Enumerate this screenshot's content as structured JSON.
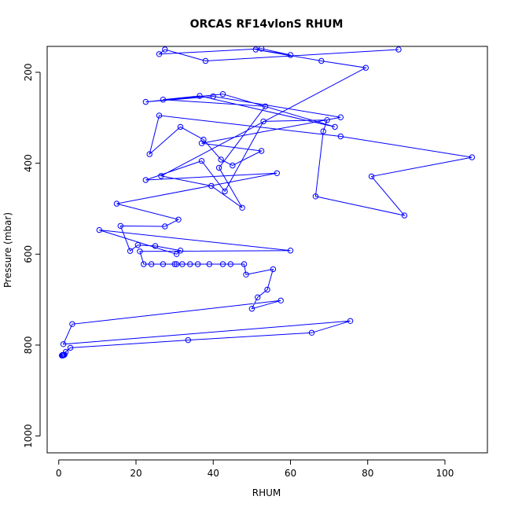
{
  "chart_data": {
    "type": "line",
    "title": "ORCAS RF14vlonS RHUM",
    "xlabel": "RHUM",
    "ylabel": "Pressure (mbar)",
    "xlim": [
      -3,
      111
    ],
    "ylim": [
      1037,
      143
    ],
    "y_reversed": true,
    "x_ticks": [
      0,
      20,
      40,
      60,
      80,
      100
    ],
    "y_ticks": [
      200,
      400,
      600,
      800,
      1000
    ],
    "grid": false,
    "legend": "none",
    "series_color": "#0000ff",
    "marker": "open-circle",
    "series": [
      {
        "x": [
          1.3,
          1.2,
          1.0,
          0.9,
          0.8,
          1.1,
          1.5,
          1.8,
          3.0,
          33.5,
          65.5,
          75.5,
          1.2,
          3.5,
          57.5,
          50.0,
          51.5,
          54.0,
          55.5,
          48.5,
          48.0,
          44.5,
          42.5,
          39.0,
          36.0,
          34.0,
          32.0,
          30.5,
          30.0,
          27.0,
          24.0,
          22.0,
          21.0,
          60.0,
          10.5,
          30.5,
          31.5,
          25.0,
          20.5,
          18.5,
          16.0,
          27.5,
          31.0,
          15.0,
          56.5,
          22.5,
          37.0,
          43.0,
          53.0,
          69.5,
          68.5,
          66.5,
          89.5,
          81.0,
          107.0,
          73.0,
          26.0,
          23.5,
          31.5,
          37.5,
          42.0,
          45.0,
          52.5,
          37.0,
          73.0,
          40.0,
          22.5,
          42.5,
          71.5,
          36.5,
          27.0,
          53.5,
          41.5,
          47.5,
          39.5,
          26.5,
          79.5,
          68.0,
          51.0,
          60.0,
          52.5,
          26.0,
          27.5,
          38.0,
          88.0
        ],
        "y": [
          822,
          822,
          823,
          822,
          823,
          822,
          821,
          815,
          806,
          789,
          773,
          747,
          798,
          754,
          702,
          720,
          695,
          678,
          633,
          645,
          622,
          622,
          622,
          622,
          622,
          622,
          622,
          622,
          622,
          622,
          622,
          622,
          594,
          592,
          547,
          600,
          592,
          582,
          580,
          593,
          538,
          539,
          524,
          489,
          422,
          437,
          395,
          462,
          308,
          305,
          330,
          473,
          515,
          429,
          387,
          341,
          295,
          380,
          320,
          348,
          392,
          405,
          373,
          356,
          299,
          253,
          265,
          248,
          320,
          252,
          260,
          275,
          410,
          498,
          450,
          428,
          190,
          175,
          150,
          162,
          148,
          160,
          150,
          175,
          150
        ]
      }
    ]
  }
}
